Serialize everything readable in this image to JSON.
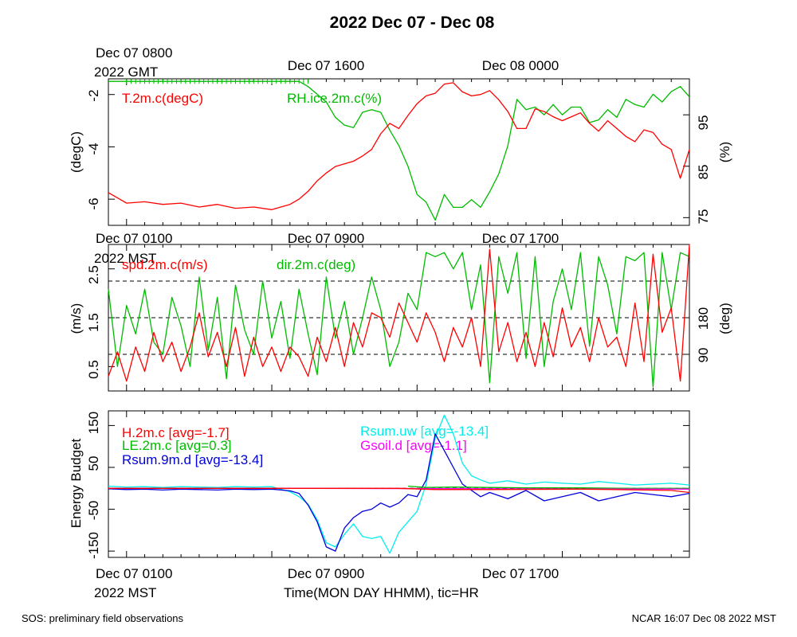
{
  "title": "2022 Dec 07 - Dec 08",
  "footer": {
    "left": "SOS: preliminary field observations",
    "right": "NCAR 16:07 Dec 08 2022 MST"
  },
  "colors": {
    "red": "#ff0000",
    "green": "#00bb00",
    "blue": "#0000dd",
    "cyan": "#00eeee",
    "magenta": "#ff00ff",
    "black": "#000000"
  },
  "chart_data": [
    {
      "type": "line",
      "panel": "temperature-humidity",
      "top_time_labels": [
        "Dec 07 0800",
        "Dec 07 1600",
        "Dec 08 0000"
      ],
      "top_zone_label": "2022 GMT",
      "x_unit": "hours since Dec 07 0100 MST",
      "xlim": [
        -1,
        31
      ],
      "left_axis": {
        "label": "(degC)",
        "ylim": [
          -7.0,
          -1.4
        ],
        "ticks": [
          "-2",
          "-4",
          "-6"
        ],
        "tick_values": [
          -2,
          -4,
          -6
        ]
      },
      "right_axis": {
        "label": "(%)",
        "ylim": [
          73.5,
          102
        ],
        "ticks": [
          "95",
          "85",
          "75"
        ],
        "tick_values": [
          95,
          85,
          75
        ]
      },
      "series": [
        {
          "name": "T.2m.c(degC)",
          "color": "#ff0000",
          "axis": "left",
          "x": [
            -1,
            0,
            1,
            2,
            3,
            4,
            5,
            6,
            7,
            8,
            9,
            9.5,
            10,
            10.5,
            11,
            11.5,
            12,
            12.5,
            13,
            13.5,
            14,
            14.5,
            15,
            15.5,
            16,
            16.5,
            17,
            17.5,
            18,
            18.5,
            19,
            19.5,
            20,
            20.5,
            21,
            21.5,
            22,
            22.5,
            23,
            23.5,
            24,
            24.5,
            25,
            25.5,
            26,
            26.5,
            27,
            27.5,
            28,
            28.5,
            29,
            29.5,
            30,
            30.5,
            31
          ],
          "y": [
            -5.75,
            -6.15,
            -6.1,
            -6.2,
            -6.15,
            -6.3,
            -6.2,
            -6.35,
            -6.3,
            -6.4,
            -6.2,
            -6.0,
            -5.7,
            -5.3,
            -5.0,
            -4.75,
            -4.65,
            -4.55,
            -4.35,
            -4.1,
            -3.5,
            -3.1,
            -3.3,
            -2.8,
            -2.35,
            -2.05,
            -1.95,
            -1.6,
            -1.55,
            -1.9,
            -2.05,
            -2.0,
            -1.85,
            -2.2,
            -2.65,
            -3.3,
            -3.3,
            -2.55,
            -2.65,
            -2.85,
            -3.0,
            -2.85,
            -2.7,
            -3.1,
            -3.4,
            -3.0,
            -3.3,
            -3.6,
            -3.8,
            -3.35,
            -3.45,
            -3.9,
            -4.1,
            -5.2,
            -4.1
          ]
        },
        {
          "name": "RH.ice.2m.c(%)",
          "color": "#00bb00",
          "axis": "right",
          "x": [
            -1,
            0,
            1,
            2,
            3,
            4,
            5,
            6,
            7,
            8,
            9,
            9.5,
            10,
            10.5,
            11,
            11.5,
            12,
            12.5,
            13,
            13.5,
            14,
            14.5,
            15,
            15.5,
            16,
            16.5,
            17,
            17.5,
            18,
            18.5,
            19,
            19.5,
            20,
            20.5,
            21,
            21.5,
            22,
            22.5,
            23,
            23.5,
            24,
            24.5,
            25,
            25.5,
            26,
            26.5,
            27,
            27.5,
            28,
            28.5,
            29,
            29.5,
            30,
            30.5,
            31
          ],
          "y": [
            101.5,
            101.5,
            101.5,
            101.5,
            101.5,
            101.5,
            101.5,
            101.5,
            101.5,
            101.5,
            101.5,
            101.5,
            100.5,
            99.0,
            97.5,
            94.5,
            93.0,
            92.5,
            95.5,
            96.0,
            95.5,
            92.0,
            89.0,
            85.0,
            79.5,
            78.0,
            74.5,
            79.5,
            77.0,
            77.0,
            78.5,
            77.0,
            80.0,
            83.5,
            89.0,
            98.0,
            96.0,
            96.5,
            95.0,
            97.0,
            95.0,
            96.5,
            96.5,
            93.5,
            94.0,
            96.0,
            94.5,
            98.0,
            97.0,
            96.5,
            99.0,
            97.5,
            99.5,
            100.5,
            98.5
          ]
        }
      ]
    },
    {
      "type": "line",
      "panel": "wind",
      "top_time_labels": [
        "Dec 07 0100",
        "Dec 07 0900",
        "Dec 07 1700"
      ],
      "top_zone_label": "2022 MST",
      "x_unit": "hours since Dec 07 0100 MST",
      "xlim": [
        -1,
        31
      ],
      "left_axis": {
        "label": "(m/s)",
        "ylim": [
          0.0,
          3.0
        ],
        "ticks": [
          "2.5",
          "1.5",
          "0.5"
        ],
        "tick_values": [
          2.5,
          1.5,
          0.5
        ]
      },
      "right_axis": {
        "label": "(deg)",
        "ylim": [
          0,
          360
        ],
        "ticks": [
          "180",
          "90"
        ],
        "tick_values": [
          180,
          90
        ]
      },
      "reference_lines_deg": [
        90,
        180,
        270
      ],
      "series": [
        {
          "name": "spd.2m.c(m/s)",
          "color": "#ff0000",
          "axis": "left",
          "x": [
            -1,
            -0.5,
            0,
            0.5,
            1,
            1.5,
            2,
            2.5,
            3,
            3.5,
            4,
            4.5,
            5,
            5.5,
            6,
            6.5,
            7,
            7.5,
            8,
            8.5,
            9,
            9.5,
            10,
            10.5,
            11,
            11.5,
            12,
            12.5,
            13,
            13.5,
            14,
            14.5,
            15,
            15.5,
            16,
            16.5,
            17,
            17.5,
            18,
            18.5,
            19,
            19.5,
            20,
            20.5,
            21,
            21.5,
            22,
            22.5,
            23,
            23.5,
            24,
            24.5,
            25,
            25.5,
            26,
            26.5,
            27,
            27.5,
            28,
            28.5,
            29,
            29.5,
            30,
            30.5,
            31
          ],
          "y": [
            0.3,
            0.8,
            0.2,
            0.9,
            0.4,
            1.2,
            0.6,
            1.0,
            0.4,
            0.9,
            1.6,
            0.7,
            1.2,
            0.5,
            1.3,
            0.3,
            1.1,
            0.5,
            0.9,
            0.4,
            0.9,
            0.7,
            0.3,
            1.1,
            0.6,
            1.3,
            0.5,
            1.4,
            0.9,
            1.6,
            1.5,
            1.1,
            1.8,
            1.4,
            1.0,
            1.6,
            1.2,
            0.6,
            1.3,
            0.9,
            1.5,
            0.5,
            2.9,
            0.8,
            1.4,
            0.6,
            1.2,
            0.5,
            1.4,
            0.7,
            1.7,
            0.9,
            1.3,
            0.6,
            1.5,
            0.9,
            1.1,
            0.5,
            1.8,
            0.6,
            2.8,
            1.2,
            1.7,
            0.2,
            3.0
          ]
        },
        {
          "name": "dir.2m.c(deg)",
          "color": "#00bb00",
          "axis": "right",
          "x": [
            -1,
            -0.5,
            0,
            0.5,
            1,
            1.5,
            2,
            2.5,
            3,
            3.5,
            4,
            4.5,
            5,
            5.5,
            6,
            6.5,
            7,
            7.5,
            8,
            8.5,
            9,
            9.5,
            10,
            10.5,
            11,
            11.5,
            12,
            12.5,
            13,
            13.5,
            14,
            14.5,
            15,
            15.5,
            16,
            16.5,
            17,
            17.5,
            18,
            18.5,
            19,
            19.5,
            20,
            20.5,
            21,
            21.5,
            22,
            22.5,
            23,
            23.5,
            24,
            24.5,
            25,
            25.5,
            26,
            26.5,
            27,
            27.5,
            28,
            28.5,
            29,
            29.5,
            30,
            30.5,
            31
          ],
          "y": [
            250,
            60,
            210,
            140,
            250,
            120,
            90,
            230,
            160,
            60,
            280,
            100,
            230,
            30,
            260,
            150,
            90,
            270,
            130,
            220,
            80,
            250,
            140,
            40,
            280,
            130,
            220,
            90,
            180,
            280,
            200,
            60,
            120,
            240,
            200,
            340,
            330,
            340,
            300,
            340,
            200,
            310,
            20,
            330,
            240,
            340,
            80,
            330,
            60,
            220,
            300,
            200,
            340,
            110,
            330,
            260,
            140,
            330,
            320,
            340,
            10,
            340,
            200,
            340,
            330
          ]
        }
      ]
    },
    {
      "type": "line",
      "panel": "energy-budget",
      "x_unit": "hours since Dec 07 0100 MST",
      "xlim": [
        -1,
        31
      ],
      "ylabel": "Energy Budget",
      "ylim": [
        -165,
        185
      ],
      "ticks": [
        "150",
        "50",
        "-50",
        "-150"
      ],
      "tick_values": [
        150,
        50,
        -50,
        -150
      ],
      "zero_line": true,
      "series": [
        {
          "name": "H.2m.c",
          "legend": "H.2m.c [avg=-1.7]",
          "color": "#ff0000",
          "x": [
            -1,
            5,
            10,
            15,
            17,
            20,
            25,
            30,
            31
          ],
          "y": [
            0,
            0,
            0,
            0,
            -3,
            -3,
            -2,
            -5,
            -10
          ]
        },
        {
          "name": "LE.2m.c",
          "legend": "LE.2m.c [avg=0.3]",
          "color": "#00bb00",
          "x": [
            15.5,
            16.5,
            18,
            20,
            22,
            25,
            28,
            31
          ],
          "y": [
            5,
            2,
            3,
            2,
            1,
            1,
            0,
            0
          ]
        },
        {
          "name": "Rsum.9m.d",
          "legend": "Rsum.9m.d [avg=-13.4]",
          "color": "#0000dd",
          "x": [
            -1,
            0,
            1,
            2,
            3,
            4,
            5,
            6,
            7,
            8,
            9,
            9.5,
            10,
            10.5,
            11,
            11.5,
            12,
            12.5,
            13,
            13.5,
            14,
            14.5,
            15,
            15.5,
            16,
            16.5,
            17,
            17.5,
            18,
            18.5,
            19,
            19.5,
            20,
            21,
            22,
            23,
            24,
            25,
            26,
            27,
            28,
            29,
            30,
            31
          ],
          "y": [
            -1,
            -3,
            -2,
            -4,
            -2,
            -3,
            -4,
            -2,
            -3,
            -2,
            -6,
            -12,
            -40,
            -80,
            -140,
            -150,
            -95,
            -70,
            -55,
            -50,
            -35,
            -45,
            -35,
            -15,
            -20,
            20,
            130,
            90,
            50,
            10,
            -5,
            -20,
            -10,
            -25,
            -5,
            -30,
            -20,
            -10,
            -30,
            -20,
            -10,
            -15,
            -20,
            -12
          ]
        },
        {
          "name": "Rsum.uw",
          "legend": "Rsum.uw [avg=-13.4]",
          "color": "#00eeee",
          "x": [
            -1,
            0,
            1,
            2,
            3,
            4,
            5,
            6,
            7,
            8,
            9,
            9.5,
            10,
            10.5,
            11,
            11.5,
            12,
            12.5,
            13,
            13.5,
            14,
            14.5,
            15,
            15.5,
            16,
            16.5,
            17,
            17.5,
            18,
            18.5,
            19,
            19.5,
            20,
            21,
            22,
            23,
            24,
            25,
            26,
            27,
            28,
            29,
            30,
            31
          ],
          "y": [
            5,
            3,
            4,
            2,
            4,
            3,
            2,
            4,
            3,
            4,
            -8,
            -20,
            -38,
            -75,
            -130,
            -140,
            -110,
            -85,
            -115,
            -120,
            -115,
            -155,
            -105,
            -80,
            -55,
            10,
            120,
            175,
            130,
            60,
            30,
            20,
            12,
            18,
            10,
            15,
            12,
            10,
            16,
            12,
            8,
            10,
            12,
            8
          ]
        },
        {
          "name": "Gsoil.d",
          "legend": "Gsoil.d [avg=-1.1]",
          "color": "#ff00ff",
          "x": [
            -1,
            10,
            20,
            31
          ],
          "y": [
            0,
            0,
            -1,
            -2
          ]
        }
      ]
    }
  ],
  "bottom_axis": {
    "time_labels": [
      "Dec 07 0100",
      "Dec 07 0900",
      "Dec 07 1700"
    ],
    "zone_label": "2022 MST",
    "xlabel": "Time(MON DAY HHMM), tic=HR"
  }
}
